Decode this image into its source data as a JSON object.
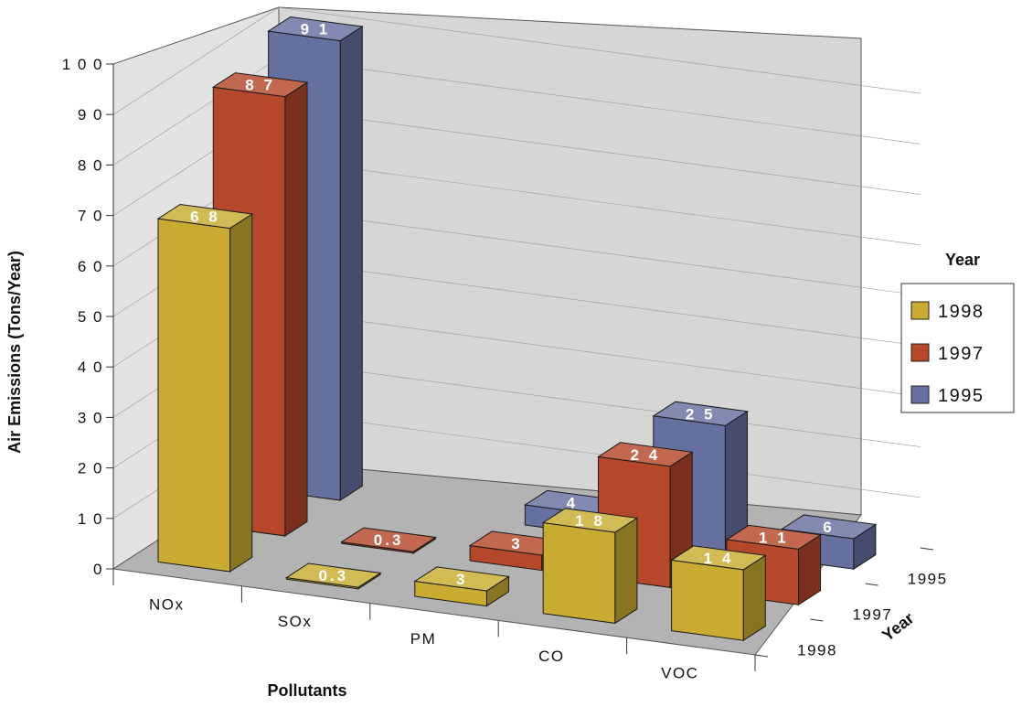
{
  "chart_data": {
    "type": "bar",
    "subtype": "3d-bar",
    "categories": [
      "NOx",
      "SOx",
      "PM",
      "CO",
      "VOC"
    ],
    "series": [
      {
        "name": "1998",
        "values": [
          68,
          0.3,
          3,
          18,
          14
        ],
        "labels": [
          "6 8",
          "0.3",
          "3",
          "1 8",
          "1 4"
        ],
        "color": "#c8ab30"
      },
      {
        "name": "1997",
        "values": [
          87,
          0.3,
          3,
          24,
          11
        ],
        "labels": [
          "8 7",
          "0.3",
          "3",
          "2 4",
          "1 1"
        ],
        "color": "#b5472a"
      },
      {
        "name": "1995",
        "values": [
          91,
          null,
          4,
          25,
          6
        ],
        "labels": [
          "9 1",
          "",
          "4",
          "2 5",
          "6"
        ],
        "color": "#6670a0"
      }
    ],
    "ylabel": "Air Emissions (Tons/Year)",
    "xlabel": "Pollutants",
    "zlabel": "Year",
    "yticks": [
      "0",
      "1 0",
      "2 0",
      "3 0",
      "4 0",
      "5 0",
      "6 0",
      "7 0",
      "8 0",
      "9 0",
      "1 0 0"
    ],
    "ylim": [
      0,
      100
    ],
    "depth_ticks": [
      "1995",
      "1997",
      "1998"
    ],
    "legend": {
      "title": "Year",
      "position": "right",
      "entries": [
        "1998",
        "1997",
        "1995"
      ]
    }
  }
}
